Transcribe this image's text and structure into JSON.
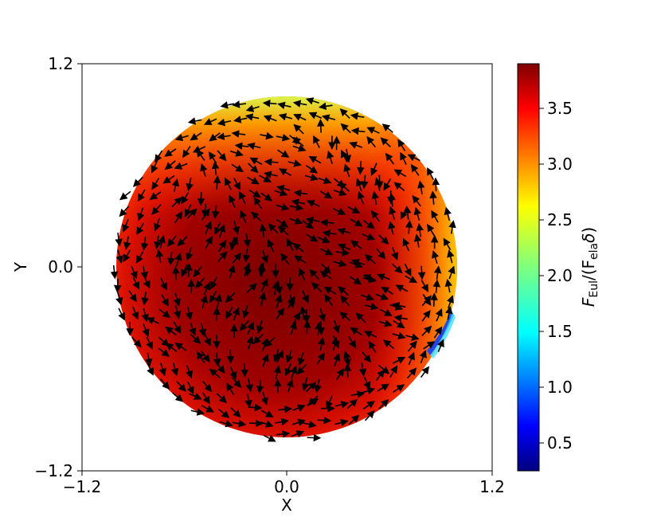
{
  "chart_data": {
    "type": "quiver",
    "title": "",
    "xlabel": "X",
    "ylabel": "Y",
    "xlim": [
      -1.2,
      1.2
    ],
    "ylim": [
      -1.2,
      1.2
    ],
    "xticks": [
      "−1.2",
      "0.0",
      "1.2"
    ],
    "yticks": [
      "−1.2",
      "0.0",
      "1.2"
    ],
    "grid": false,
    "disk": {
      "center": [
        0.0,
        0.0
      ],
      "radius": 1.0
    },
    "colorbar": {
      "label_main": "F",
      "label_sub1": "Eul",
      "label_mid": "/(F",
      "label_sub2": "ela",
      "label_delta": "δ",
      "label_close": ")",
      "min": 0.25,
      "max": 3.9,
      "ticks": [
        "0.5",
        "1.0",
        "1.5",
        "2.0",
        "2.5",
        "3.0",
        "3.5"
      ],
      "tick_values": [
        0.5,
        1.0,
        1.5,
        2.0,
        2.5,
        3.0,
        3.5
      ],
      "colormap": "jet"
    },
    "field_samples": [
      {
        "x": -0.9,
        "y": 0.0,
        "value": 3.7
      },
      {
        "x": 0.0,
        "y": 0.0,
        "value": 3.85
      },
      {
        "x": 0.0,
        "y": 0.95,
        "value": 2.9
      },
      {
        "x": 0.9,
        "y": 0.3,
        "value": 3.0
      },
      {
        "x": 0.95,
        "y": -0.4,
        "value": 1.2
      },
      {
        "x": 0.0,
        "y": -0.95,
        "value": 3.6
      }
    ],
    "arrow_color": "#000000"
  }
}
